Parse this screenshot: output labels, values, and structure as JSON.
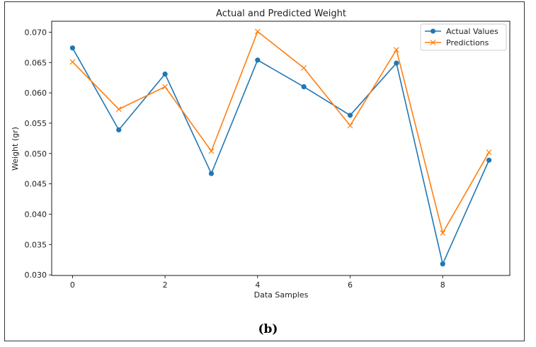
{
  "caption": "(b)",
  "chart_data": {
    "type": "line",
    "title": "Actual and Predicted Weight",
    "xlabel": "Data Samples",
    "ylabel": "Weight (gr)",
    "x": [
      0,
      1,
      2,
      3,
      4,
      5,
      6,
      7,
      8,
      9
    ],
    "xticks": [
      "0",
      "2",
      "4",
      "6",
      "8"
    ],
    "yticks": [
      "0.030",
      "0.035",
      "0.040",
      "0.045",
      "0.050",
      "0.055",
      "0.060",
      "0.065",
      "0.070"
    ],
    "xlim": [
      -0.45,
      9.45
    ],
    "ylim": [
      0.0299,
      0.0718
    ],
    "grid": false,
    "legend_position": "top-right",
    "series": [
      {
        "name": "Actual Values",
        "marker": "circle",
        "color": "#1f77b4",
        "values": [
          0.0674,
          0.0539,
          0.0631,
          0.0467,
          0.0654,
          0.061,
          0.0563,
          0.0649,
          0.0318,
          0.0489
        ]
      },
      {
        "name": "Predictions",
        "marker": "x",
        "color": "#ff7f0e",
        "values": [
          0.0651,
          0.0573,
          0.061,
          0.0504,
          0.0701,
          0.0641,
          0.0546,
          0.0671,
          0.0369,
          0.0502
        ]
      }
    ]
  }
}
